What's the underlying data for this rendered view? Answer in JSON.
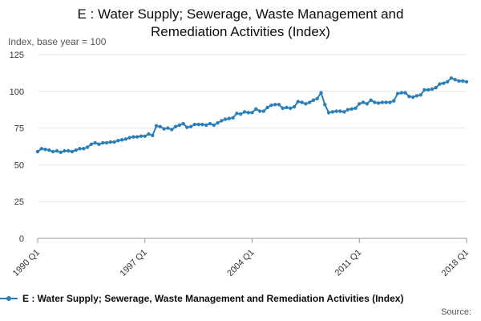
{
  "chart_data": {
    "type": "line",
    "title_lines": [
      "E : Water Supply; Sewerage, Waste Management and",
      "Remediation Activities (Index)"
    ],
    "ylabel": "Index, base year = 100",
    "ylim": [
      0,
      125
    ],
    "yticks": [
      "0",
      "25",
      "50",
      "75",
      "100",
      "125"
    ],
    "xticks": [
      {
        "label": "1990 Q1",
        "index": 0
      },
      {
        "label": "1997 Q1",
        "index": 28
      },
      {
        "label": "2004 Q1",
        "index": 56
      },
      {
        "label": "2011 Q1",
        "index": 84
      },
      {
        "label": "2018 Q1",
        "index": 112
      }
    ],
    "grid": true,
    "legend_position": "bottom",
    "source_label": "Source:",
    "colors": {
      "series": "#2b7fb8",
      "grid": "#e6e6e6",
      "axis": "#999999"
    },
    "series": [
      {
        "name": "E : Water Supply; Sewerage, Waste Management and Remediation Activities (Index)",
        "values": [
          59,
          61,
          60.5,
          60,
          59,
          59.5,
          58.5,
          59.5,
          59.5,
          59,
          60,
          61,
          61,
          62,
          64,
          65,
          64,
          65,
          65,
          65.5,
          65.5,
          66.5,
          67,
          67.5,
          68.5,
          69,
          69,
          69.5,
          69.5,
          71,
          70,
          76.5,
          76,
          74.5,
          75,
          74,
          76,
          77,
          78,
          75.5,
          76,
          77.5,
          77.5,
          77.5,
          77,
          78,
          77,
          78.5,
          80,
          81,
          81.5,
          82,
          85,
          84.5,
          86,
          85.5,
          85.5,
          88,
          86.5,
          86.5,
          89,
          90.5,
          91,
          91,
          88.5,
          89,
          88.5,
          89.5,
          93,
          92.5,
          91.5,
          92.5,
          94,
          95,
          99,
          91,
          85.5,
          86,
          86.5,
          86.5,
          86,
          87.5,
          88,
          88.5,
          91.5,
          92.5,
          91.5,
          94,
          92.5,
          92,
          92.5,
          92.5,
          92.5,
          93.5,
          98.5,
          99,
          99,
          96.5,
          96,
          97,
          97.5,
          101,
          101,
          101.5,
          102.5,
          105,
          105.5,
          106.5,
          109,
          108,
          107,
          107,
          106.5
        ]
      }
    ]
  }
}
